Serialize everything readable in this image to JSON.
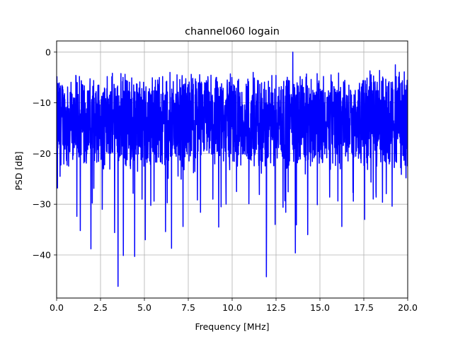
{
  "chart_data": {
    "type": "line",
    "title": "channel060 logain",
    "xlabel": "Frequency [MHz]",
    "ylabel": "PSD [dB]",
    "xlim": [
      0,
      20
    ],
    "ylim": [
      -48.5,
      2.2
    ],
    "xticks": [
      0.0,
      2.5,
      5.0,
      7.5,
      10.0,
      12.5,
      15.0,
      17.5,
      20.0
    ],
    "xtick_labels": [
      "0.0",
      "2.5",
      "5.0",
      "7.5",
      "10.0",
      "12.5",
      "15.0",
      "17.5",
      "20.0"
    ],
    "yticks": [
      0,
      -10,
      -20,
      -30,
      -40
    ],
    "ytick_labels": [
      "0",
      "−10",
      "−20",
      "−30",
      "−40"
    ],
    "grid": true,
    "line_color": "#0000ff",
    "n_points": 2048,
    "series": [
      {
        "x": [
          0.0,
          0.05,
          0.1,
          0.2,
          0.45,
          0.6,
          0.9,
          1.15,
          1.3,
          1.35,
          1.6,
          1.95,
          2.4,
          2.6,
          3.1,
          3.3,
          3.5,
          3.65,
          3.8,
          4.3,
          4.45,
          4.7,
          5.05,
          5.3,
          5.55,
          5.85,
          6.2,
          6.35,
          6.55,
          6.8,
          7.2,
          7.55,
          7.8,
          8.2,
          8.55,
          8.9,
          9.3,
          9.65,
          9.9,
          10.25,
          10.6,
          10.95,
          11.2,
          11.55,
          11.9,
          11.95,
          12.1,
          12.45,
          12.8,
          12.9,
          13.2,
          13.45,
          13.6,
          14.0,
          14.3,
          14.55,
          14.85,
          15.2,
          15.55,
          15.9,
          16.25,
          16.65,
          16.9,
          17.15,
          17.55,
          17.85,
          18.2,
          18.6,
          18.9,
          19.3,
          19.6,
          19.8,
          19.9,
          20.0
        ],
        "y": [
          -9.5,
          -26.8,
          -13.0,
          -24.5,
          -8.2,
          -22.3,
          -14.7,
          -32.4,
          -4.8,
          -35.2,
          -21.6,
          -38.8,
          -6.5,
          -31.0,
          -11.3,
          -35.6,
          -46.2,
          -9.4,
          -40.1,
          -18.2,
          -40.3,
          -7.1,
          -37.0,
          -17.6,
          -29.4,
          -5.0,
          -35.4,
          -24.9,
          -38.7,
          -10.2,
          -34.4,
          -5.9,
          -23.8,
          -31.6,
          -6.1,
          -29.0,
          -12.8,
          -30.0,
          -4.3,
          -27.5,
          -10.5,
          -29.9,
          -4.0,
          -28.1,
          -12.7,
          -44.3,
          -8.8,
          -34.0,
          -6.8,
          -30.6,
          -9.3,
          0.0,
          -39.6,
          -7.5,
          -36.0,
          -13.4,
          -30.1,
          -4.8,
          -28.6,
          -11.4,
          -34.4,
          -6.5,
          -29.4,
          -16.8,
          -33.0,
          -3.7,
          -28.6,
          -5.2,
          -21.0,
          -2.5,
          -22.8,
          -3.9,
          -24.8,
          -13.5
        ]
      }
    ]
  }
}
